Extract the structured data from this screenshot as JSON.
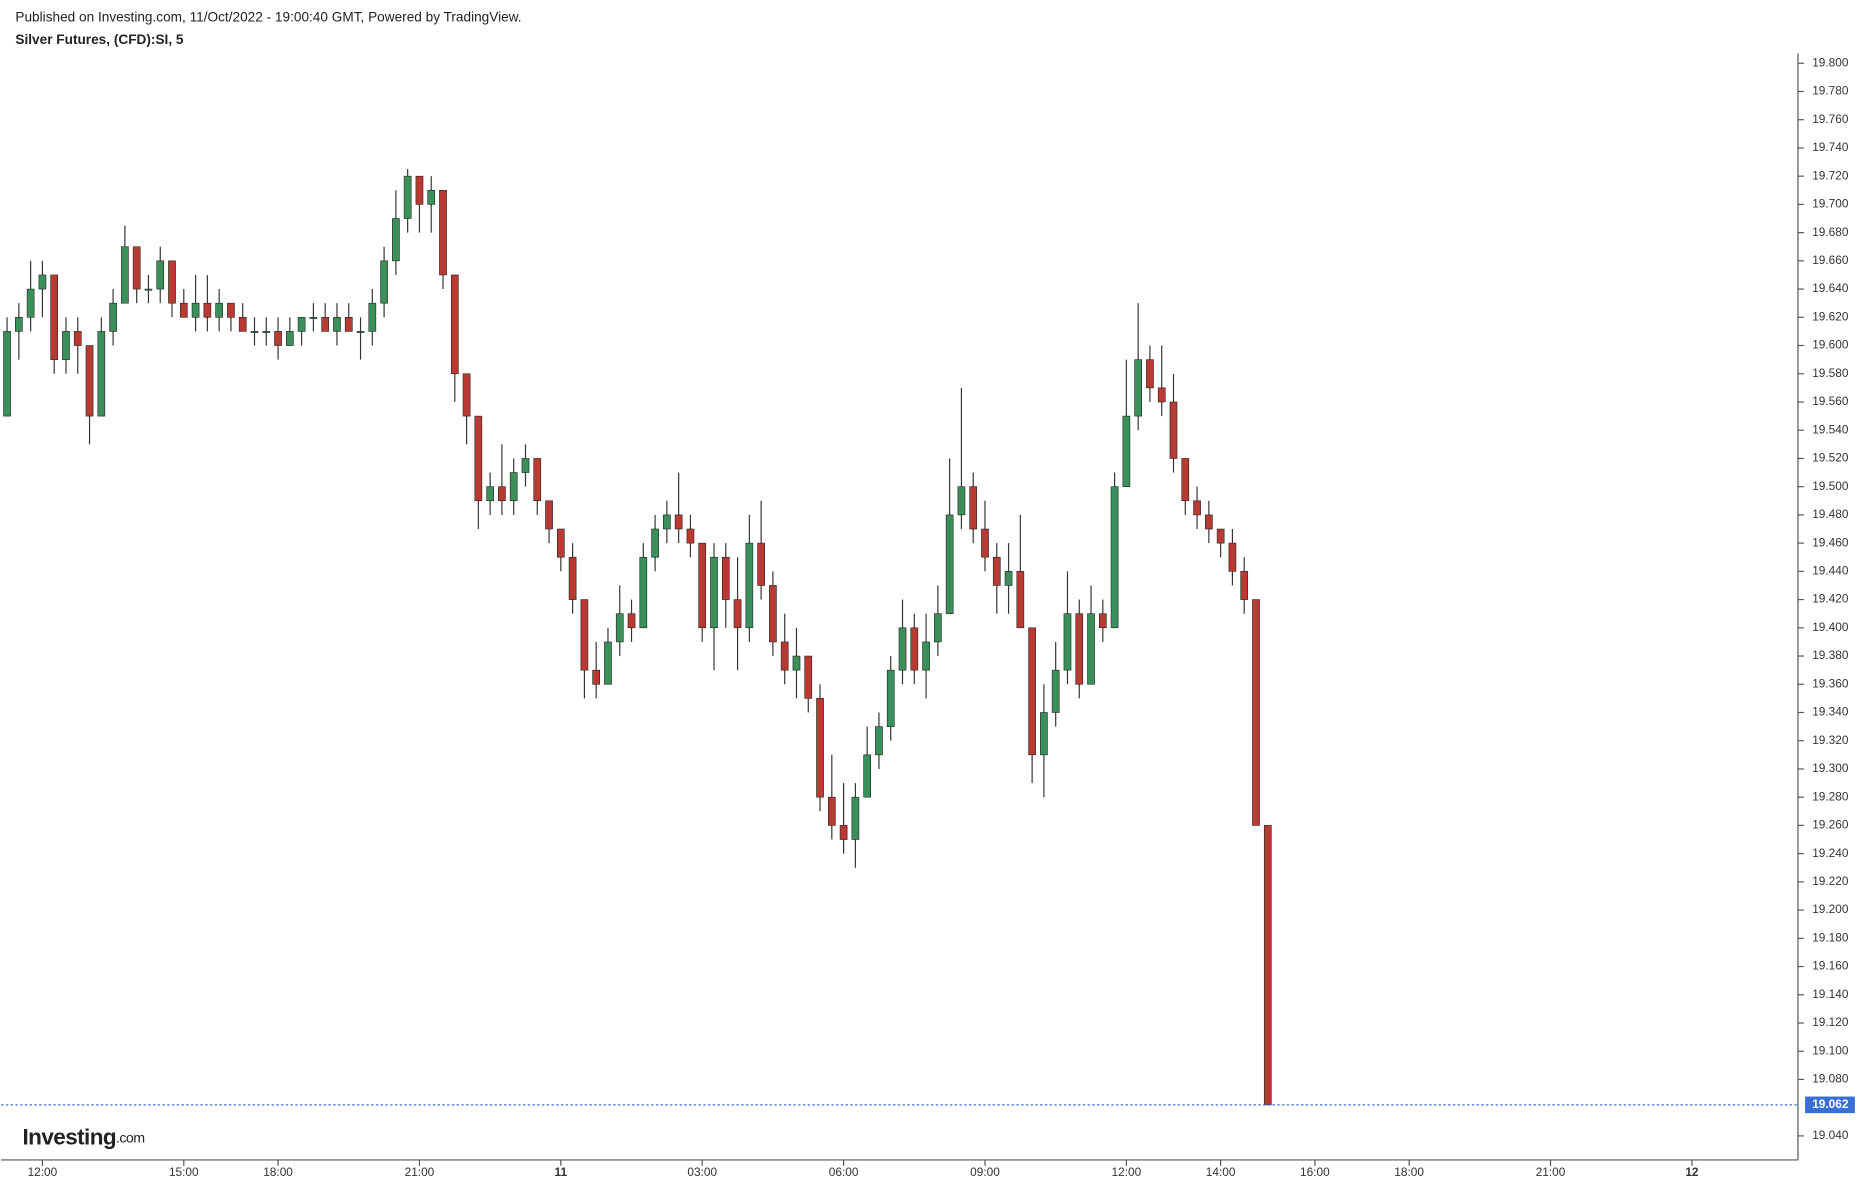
{
  "header": {
    "published": "Published on Investing.com, 11/Oct/2022 - 19:00:40 GMT, Powered by TradingView.",
    "logo": "Investing",
    "logo_suffix": ".com"
  },
  "chart_data": {
    "type": "candlestick",
    "title": "Silver Futures, (CFD):SI, 5",
    "up_color": "#3a8f5a",
    "down_color": "#b83a32",
    "wick_color": "#333333",
    "grid": false,
    "ohlc": [
      [
        19.55,
        19.62,
        19.55,
        19.61
      ],
      [
        19.61,
        19.63,
        19.59,
        19.62
      ],
      [
        19.62,
        19.66,
        19.61,
        19.64
      ],
      [
        19.64,
        19.66,
        19.62,
        19.65
      ],
      [
        19.65,
        19.65,
        19.58,
        19.59
      ],
      [
        19.59,
        19.62,
        19.58,
        19.61
      ],
      [
        19.61,
        19.62,
        19.58,
        19.6
      ],
      [
        19.6,
        19.6,
        19.53,
        19.55
      ],
      [
        19.55,
        19.62,
        19.55,
        19.61
      ],
      [
        19.61,
        19.64,
        19.6,
        19.63
      ],
      [
        19.63,
        19.685,
        19.63,
        19.67
      ],
      [
        19.67,
        19.67,
        19.63,
        19.64
      ],
      [
        19.64,
        19.65,
        19.63,
        19.64
      ],
      [
        19.64,
        19.67,
        19.63,
        19.66
      ],
      [
        19.66,
        19.66,
        19.62,
        19.63
      ],
      [
        19.63,
        19.64,
        19.62,
        19.62
      ],
      [
        19.62,
        19.65,
        19.61,
        19.63
      ],
      [
        19.63,
        19.65,
        19.61,
        19.62
      ],
      [
        19.62,
        19.64,
        19.61,
        19.63
      ],
      [
        19.63,
        19.63,
        19.61,
        19.62
      ],
      [
        19.62,
        19.63,
        19.61,
        19.61
      ],
      [
        19.61,
        19.62,
        19.6,
        19.61
      ],
      [
        19.61,
        19.62,
        19.6,
        19.61
      ],
      [
        19.61,
        19.62,
        19.59,
        19.6
      ],
      [
        19.6,
        19.62,
        19.6,
        19.61
      ],
      [
        19.61,
        19.62,
        19.6,
        19.62
      ],
      [
        19.62,
        19.63,
        19.61,
        19.62
      ],
      [
        19.62,
        19.63,
        19.61,
        19.61
      ],
      [
        19.61,
        19.63,
        19.6,
        19.62
      ],
      [
        19.62,
        19.63,
        19.61,
        19.61
      ],
      [
        19.61,
        19.62,
        19.59,
        19.61
      ],
      [
        19.61,
        19.64,
        19.6,
        19.63
      ],
      [
        19.63,
        19.67,
        19.62,
        19.66
      ],
      [
        19.66,
        19.71,
        19.65,
        19.69
      ],
      [
        19.69,
        19.725,
        19.68,
        19.72
      ],
      [
        19.72,
        19.72,
        19.68,
        19.7
      ],
      [
        19.7,
        19.72,
        19.68,
        19.71
      ],
      [
        19.71,
        19.71,
        19.64,
        19.65
      ],
      [
        19.65,
        19.65,
        19.56,
        19.58
      ],
      [
        19.58,
        19.58,
        19.53,
        19.55
      ],
      [
        19.55,
        19.55,
        19.47,
        19.49
      ],
      [
        19.49,
        19.51,
        19.48,
        19.5
      ],
      [
        19.5,
        19.53,
        19.48,
        19.49
      ],
      [
        19.49,
        19.52,
        19.48,
        19.51
      ],
      [
        19.51,
        19.53,
        19.5,
        19.52
      ],
      [
        19.52,
        19.52,
        19.48,
        19.49
      ],
      [
        19.49,
        19.49,
        19.46,
        19.47
      ],
      [
        19.47,
        19.47,
        19.44,
        19.45
      ],
      [
        19.45,
        19.46,
        19.41,
        19.42
      ],
      [
        19.42,
        19.42,
        19.35,
        19.37
      ],
      [
        19.37,
        19.39,
        19.35,
        19.36
      ],
      [
        19.36,
        19.4,
        19.36,
        19.39
      ],
      [
        19.39,
        19.43,
        19.38,
        19.41
      ],
      [
        19.41,
        19.42,
        19.39,
        19.4
      ],
      [
        19.4,
        19.46,
        19.4,
        19.45
      ],
      [
        19.45,
        19.48,
        19.44,
        19.47
      ],
      [
        19.47,
        19.49,
        19.46,
        19.48
      ],
      [
        19.48,
        19.51,
        19.46,
        19.47
      ],
      [
        19.47,
        19.48,
        19.45,
        19.46
      ],
      [
        19.46,
        19.46,
        19.39,
        19.4
      ],
      [
        19.4,
        19.46,
        19.37,
        19.45
      ],
      [
        19.45,
        19.46,
        19.4,
        19.42
      ],
      [
        19.42,
        19.45,
        19.37,
        19.4
      ],
      [
        19.4,
        19.48,
        19.39,
        19.46
      ],
      [
        19.46,
        19.49,
        19.42,
        19.43
      ],
      [
        19.43,
        19.44,
        19.38,
        19.39
      ],
      [
        19.39,
        19.41,
        19.36,
        19.37
      ],
      [
        19.37,
        19.4,
        19.35,
        19.38
      ],
      [
        19.38,
        19.38,
        19.34,
        19.35
      ],
      [
        19.35,
        19.36,
        19.27,
        19.28
      ],
      [
        19.28,
        19.31,
        19.25,
        19.26
      ],
      [
        19.26,
        19.29,
        19.24,
        19.25
      ],
      [
        19.25,
        19.29,
        19.23,
        19.28
      ],
      [
        19.28,
        19.33,
        19.28,
        19.31
      ],
      [
        19.31,
        19.34,
        19.3,
        19.33
      ],
      [
        19.33,
        19.38,
        19.32,
        19.37
      ],
      [
        19.37,
        19.42,
        19.36,
        19.4
      ],
      [
        19.4,
        19.41,
        19.36,
        19.37
      ],
      [
        19.37,
        19.41,
        19.35,
        19.39
      ],
      [
        19.39,
        19.43,
        19.38,
        19.41
      ],
      [
        19.41,
        19.52,
        19.41,
        19.48
      ],
      [
        19.48,
        19.57,
        19.47,
        19.5
      ],
      [
        19.5,
        19.51,
        19.46,
        19.47
      ],
      [
        19.47,
        19.49,
        19.44,
        19.45
      ],
      [
        19.45,
        19.46,
        19.41,
        19.43
      ],
      [
        19.43,
        19.46,
        19.41,
        19.44
      ],
      [
        19.44,
        19.48,
        19.4,
        19.4
      ],
      [
        19.4,
        19.4,
        19.29,
        19.31
      ],
      [
        19.31,
        19.36,
        19.28,
        19.34
      ],
      [
        19.34,
        19.39,
        19.33,
        19.37
      ],
      [
        19.37,
        19.44,
        19.36,
        19.41
      ],
      [
        19.41,
        19.42,
        19.35,
        19.36
      ],
      [
        19.36,
        19.43,
        19.36,
        19.41
      ],
      [
        19.41,
        19.42,
        19.39,
        19.4
      ],
      [
        19.4,
        19.51,
        19.4,
        19.5
      ],
      [
        19.5,
        19.59,
        19.5,
        19.55
      ],
      [
        19.55,
        19.63,
        19.54,
        19.59
      ],
      [
        19.59,
        19.6,
        19.56,
        19.57
      ],
      [
        19.57,
        19.6,
        19.55,
        19.56
      ],
      [
        19.56,
        19.58,
        19.51,
        19.52
      ],
      [
        19.52,
        19.52,
        19.48,
        19.49
      ],
      [
        19.49,
        19.5,
        19.47,
        19.48
      ],
      [
        19.48,
        19.49,
        19.46,
        19.47
      ],
      [
        19.47,
        19.47,
        19.45,
        19.46
      ],
      [
        19.46,
        19.47,
        19.43,
        19.44
      ],
      [
        19.44,
        19.45,
        19.41,
        19.42
      ],
      [
        19.42,
        19.42,
        19.26,
        19.26
      ],
      [
        19.26,
        19.26,
        19.062,
        19.062
      ]
    ],
    "xlim": [
      -0.5,
      152
    ],
    "xticks": [
      {
        "value": 3,
        "label": "12:00"
      },
      {
        "value": 15,
        "label": "15:00"
      },
      {
        "value": 23,
        "label": "18:00"
      },
      {
        "value": 35,
        "label": "21:00"
      },
      {
        "value": 47,
        "label": "11"
      },
      {
        "value": 59,
        "label": "03:00"
      },
      {
        "value": 71,
        "label": "06:00"
      },
      {
        "value": 83,
        "label": "09:00"
      },
      {
        "value": 95,
        "label": "12:00"
      },
      {
        "value": 103,
        "label": "14:00"
      },
      {
        "value": 111,
        "label": "16:00"
      },
      {
        "value": 119,
        "label": "18:00"
      },
      {
        "value": 131,
        "label": "21:00"
      },
      {
        "value": 143,
        "label": "12"
      }
    ],
    "ylim": [
      19.023,
      19.807
    ],
    "yticks": [
      {
        "value": 19.04,
        "label": "19.040"
      },
      {
        "value": 19.08,
        "label": "19.080"
      },
      {
        "value": 19.1,
        "label": "19.100"
      },
      {
        "value": 19.12,
        "label": "19.120"
      },
      {
        "value": 19.14,
        "label": "19.140"
      },
      {
        "value": 19.16,
        "label": "19.160"
      },
      {
        "value": 19.18,
        "label": "19.180"
      },
      {
        "value": 19.2,
        "label": "19.200"
      },
      {
        "value": 19.22,
        "label": "19.220"
      },
      {
        "value": 19.24,
        "label": "19.240"
      },
      {
        "value": 19.26,
        "label": "19.260"
      },
      {
        "value": 19.28,
        "label": "19.280"
      },
      {
        "value": 19.3,
        "label": "19.300"
      },
      {
        "value": 19.32,
        "label": "19.320"
      },
      {
        "value": 19.34,
        "label": "19.340"
      },
      {
        "value": 19.36,
        "label": "19.360"
      },
      {
        "value": 19.38,
        "label": "19.380"
      },
      {
        "value": 19.4,
        "label": "19.400"
      },
      {
        "value": 19.42,
        "label": "19.420"
      },
      {
        "value": 19.44,
        "label": "19.440"
      },
      {
        "value": 19.46,
        "label": "19.460"
      },
      {
        "value": 19.48,
        "label": "19.480"
      },
      {
        "value": 19.5,
        "label": "19.500"
      },
      {
        "value": 19.52,
        "label": "19.520"
      },
      {
        "value": 19.54,
        "label": "19.540"
      },
      {
        "value": 19.56,
        "label": "19.560"
      },
      {
        "value": 19.58,
        "label": "19.580"
      },
      {
        "value": 19.6,
        "label": "19.600"
      },
      {
        "value": 19.62,
        "label": "19.620"
      },
      {
        "value": 19.64,
        "label": "19.640"
      },
      {
        "value": 19.66,
        "label": "19.660"
      },
      {
        "value": 19.68,
        "label": "19.680"
      },
      {
        "value": 19.7,
        "label": "19.700"
      },
      {
        "value": 19.72,
        "label": "19.720"
      },
      {
        "value": 19.74,
        "label": "19.740"
      },
      {
        "value": 19.76,
        "label": "19.760"
      },
      {
        "value": 19.78,
        "label": "19.780"
      },
      {
        "value": 19.8,
        "label": "19.800"
      }
    ],
    "last_price": {
      "value": 19.062,
      "label": "19.062"
    },
    "last_price_color": "#3b6fd6"
  }
}
